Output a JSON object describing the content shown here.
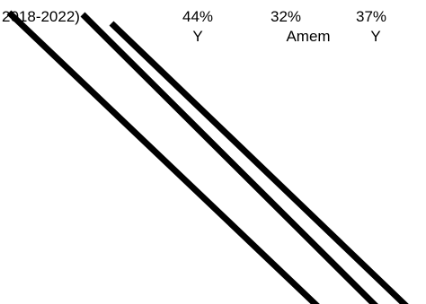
{
  "chart_data": {
    "type": "other",
    "period_label": "2018-2022)",
    "columns": [
      {
        "percent": "44%",
        "label": "Y"
      },
      {
        "percent": "32%",
        "label": "Amem"
      },
      {
        "percent": "37%",
        "label": "Y"
      }
    ],
    "strokes": 3,
    "line_color": "#000000"
  }
}
